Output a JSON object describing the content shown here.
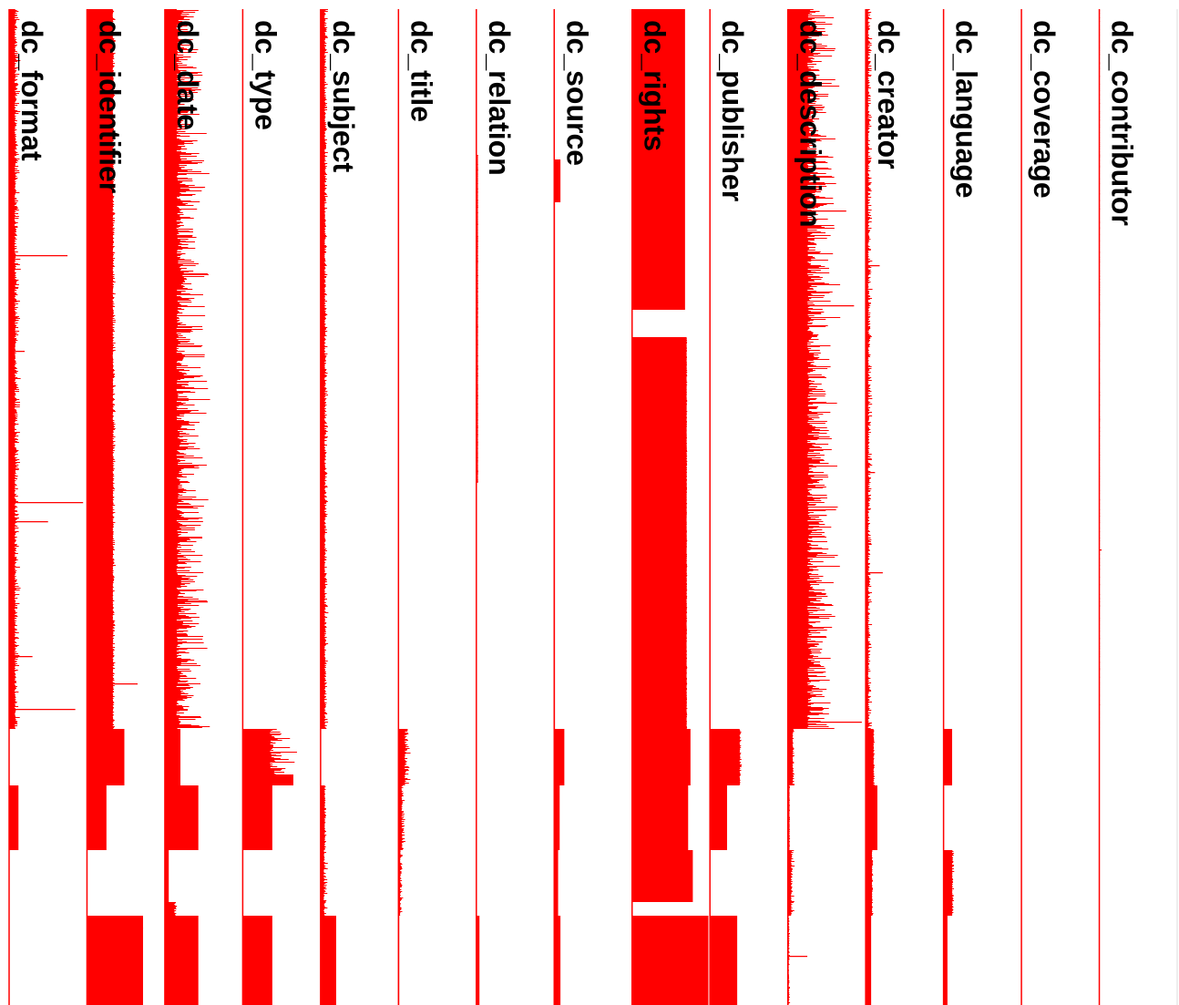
{
  "chart_data": {
    "type": "bar",
    "orientation": "horizontal-bars-in-vertical-lanes",
    "grid": false,
    "legend": "none",
    "color": "#ff0000",
    "background": "#ffffff",
    "x_range": [
      0,
      1
    ],
    "record_count": 1093,
    "fields": [
      {
        "name": "dc_contributor",
        "segments": [
          {
            "from": 0,
            "to": 790,
            "base": 0.005,
            "noise": 0.004,
            "spikes": [
              [
                593,
                0.03
              ]
            ]
          }
        ]
      },
      {
        "name": "dc_coverage",
        "segments": [
          {
            "from": 0,
            "to": 1093,
            "base": 0.0,
            "noise": 0.0,
            "spikes": []
          }
        ]
      },
      {
        "name": "dc_language",
        "segments": [
          {
            "from": 790,
            "to": 852,
            "base": 0.11,
            "noise": 0.0,
            "spikes": []
          },
          {
            "from": 923,
            "to": 995,
            "base": 0.11,
            "noise": 0.03,
            "spikes": []
          },
          {
            "from": 995,
            "to": 1093,
            "base": 0.05,
            "noise": 0.0,
            "spikes": []
          }
        ]
      },
      {
        "name": "dc_creator",
        "segments": [
          {
            "from": 0,
            "to": 790,
            "base": 0.03,
            "noise": 0.06,
            "spikes": [
              [
                281,
                0.18
              ],
              [
                618,
                0.22
              ],
              [
                508,
                0.12
              ]
            ]
          },
          {
            "from": 790,
            "to": 852,
            "base": 0.1,
            "noise": 0.02,
            "spikes": []
          },
          {
            "from": 852,
            "to": 923,
            "base": 0.15,
            "noise": 0.0,
            "spikes": []
          },
          {
            "from": 923,
            "to": 995,
            "base": 0.08,
            "noise": 0.02,
            "spikes": []
          },
          {
            "from": 995,
            "to": 1093,
            "base": 0.07,
            "noise": 0.0,
            "spikes": []
          }
        ]
      },
      {
        "name": "dc_description",
        "segments": [
          {
            "from": 0,
            "to": 790,
            "base": 0.25,
            "noise": 0.45,
            "spikes": [
              [
                221,
                0.75
              ],
              [
                325,
                0.85
              ],
              [
                782,
                0.95
              ],
              [
                555,
                0.5
              ]
            ]
          },
          {
            "from": 790,
            "to": 852,
            "base": 0.06,
            "noise": 0.03,
            "spikes": []
          },
          {
            "from": 852,
            "to": 923,
            "base": 0.02,
            "noise": 0.01,
            "spikes": []
          },
          {
            "from": 923,
            "to": 995,
            "base": 0.04,
            "noise": 0.06,
            "spikes": []
          },
          {
            "from": 995,
            "to": 1093,
            "base": 0.01,
            "noise": 0.02,
            "spikes": [
              [
                1039,
                0.25
              ]
            ]
          }
        ]
      },
      {
        "name": "dc_publisher",
        "segments": [
          {
            "from": 0,
            "to": 790,
            "base": 0.0,
            "noise": 0.0,
            "spikes": []
          },
          {
            "from": 790,
            "to": 852,
            "base": 0.38,
            "noise": 0.03,
            "spikes": []
          },
          {
            "from": 852,
            "to": 923,
            "base": 0.22,
            "noise": 0.0,
            "spikes": []
          },
          {
            "from": 995,
            "to": 1093,
            "base": 0.35,
            "noise": 0.0,
            "spikes": []
          }
        ]
      },
      {
        "name": "dc_rights",
        "segments": [
          {
            "from": 0,
            "to": 330,
            "base": 0.68,
            "noise": 0.0,
            "spikes": []
          },
          {
            "from": 360,
            "to": 790,
            "base": 0.7,
            "noise": 0.01,
            "spikes": []
          },
          {
            "from": 790,
            "to": 852,
            "base": 0.75,
            "noise": 0.0,
            "spikes": []
          },
          {
            "from": 852,
            "to": 923,
            "base": 0.72,
            "noise": 0.0,
            "spikes": []
          },
          {
            "from": 923,
            "to": 980,
            "base": 0.78,
            "noise": 0.0,
            "spikes": []
          },
          {
            "from": 995,
            "to": 1093,
            "base": 0.98,
            "noise": 0.0,
            "spikes": []
          }
        ]
      },
      {
        "name": "dc_source",
        "segments": [
          {
            "from": 165,
            "to": 212,
            "base": 0.08,
            "noise": 0.0,
            "spikes": []
          },
          {
            "from": 212,
            "to": 790,
            "base": 0.01,
            "noise": 0.0,
            "spikes": []
          },
          {
            "from": 790,
            "to": 852,
            "base": 0.13,
            "noise": 0.0,
            "spikes": []
          },
          {
            "from": 852,
            "to": 923,
            "base": 0.07,
            "noise": 0.0,
            "spikes": []
          },
          {
            "from": 923,
            "to": 995,
            "base": 0.05,
            "noise": 0.0,
            "spikes": []
          },
          {
            "from": 995,
            "to": 1093,
            "base": 0.08,
            "noise": 0.0,
            "spikes": []
          }
        ]
      },
      {
        "name": "dc_relation",
        "segments": [
          {
            "from": 160,
            "to": 520,
            "base": 0.02,
            "noise": 0.005,
            "spikes": []
          },
          {
            "from": 995,
            "to": 1093,
            "base": 0.04,
            "noise": 0.0,
            "spikes": []
          }
        ]
      },
      {
        "name": "dc_title",
        "segments": [
          {
            "from": 0,
            "to": 790,
            "base": 0.005,
            "noise": 0.003,
            "spikes": []
          },
          {
            "from": 790,
            "to": 852,
            "base": 0.08,
            "noise": 0.09,
            "spikes": []
          },
          {
            "from": 852,
            "to": 923,
            "base": 0.04,
            "noise": 0.06,
            "spikes": []
          },
          {
            "from": 923,
            "to": 995,
            "base": 0.02,
            "noise": 0.05,
            "spikes": []
          },
          {
            "from": 995,
            "to": 1093,
            "base": 0.01,
            "noise": 0.0,
            "spikes": []
          }
        ]
      },
      {
        "name": "dc_subject",
        "segments": [
          {
            "from": 0,
            "to": 790,
            "base": 0.05,
            "noise": 0.05,
            "spikes": []
          },
          {
            "from": 852,
            "to": 923,
            "base": 0.05,
            "noise": 0.03,
            "spikes": []
          },
          {
            "from": 923,
            "to": 995,
            "base": 0.04,
            "noise": 0.06,
            "spikes": []
          },
          {
            "from": 995,
            "to": 1093,
            "base": 0.2,
            "noise": 0.0,
            "spikes": []
          }
        ]
      },
      {
        "name": "dc_type",
        "segments": [
          {
            "from": 0,
            "to": 790,
            "base": 0.0,
            "noise": 0.0,
            "spikes": []
          },
          {
            "from": 790,
            "to": 840,
            "base": 0.35,
            "noise": 0.4,
            "spikes": []
          },
          {
            "from": 840,
            "to": 852,
            "base": 0.65,
            "noise": 0.0,
            "spikes": []
          },
          {
            "from": 852,
            "to": 923,
            "base": 0.38,
            "noise": 0.0,
            "spikes": []
          },
          {
            "from": 995,
            "to": 1093,
            "base": 0.38,
            "noise": 0.0,
            "spikes": []
          }
        ]
      },
      {
        "name": "dc_date",
        "segments": [
          {
            "from": 0,
            "to": 790,
            "base": 0.15,
            "noise": 0.45,
            "spikes": [
              [
                195,
                0.5
              ],
              [
                290,
                0.55
              ],
              [
                650,
                0.55
              ]
            ]
          },
          {
            "from": 790,
            "to": 852,
            "base": 0.2,
            "noise": 0.0,
            "spikes": []
          },
          {
            "from": 852,
            "to": 923,
            "base": 0.43,
            "noise": 0.0,
            "spikes": []
          },
          {
            "from": 923,
            "to": 980,
            "base": 0.05,
            "noise": 0.0,
            "spikes": []
          },
          {
            "from": 980,
            "to": 995,
            "base": 0.12,
            "noise": 0.06,
            "spikes": []
          },
          {
            "from": 995,
            "to": 1093,
            "base": 0.43,
            "noise": 0.0,
            "spikes": []
          }
        ]
      },
      {
        "name": "dc_identifier",
        "segments": [
          {
            "from": 0,
            "to": 790,
            "base": 0.33,
            "noise": 0.04,
            "spikes": [
              [
                740,
                0.65
              ]
            ]
          },
          {
            "from": 790,
            "to": 852,
            "base": 0.48,
            "noise": 0.0,
            "spikes": []
          },
          {
            "from": 852,
            "to": 923,
            "base": 0.25,
            "noise": 0.0,
            "spikes": []
          },
          {
            "from": 923,
            "to": 995,
            "base": 0.0,
            "noise": 0.0,
            "spikes": []
          },
          {
            "from": 995,
            "to": 1093,
            "base": 0.72,
            "noise": 0.0,
            "spikes": [
              [
                1008,
                0.72
              ]
            ]
          }
        ]
      },
      {
        "name": "dc_format",
        "segments": [
          {
            "from": 0,
            "to": 790,
            "base": 0.07,
            "noise": 0.08,
            "spikes": [
              [
                270,
                0.75
              ],
              [
                375,
                0.2
              ],
              [
                541,
                0.95
              ],
              [
                562,
                0.5
              ],
              [
                768,
                0.85
              ],
              [
                710,
                0.3
              ]
            ]
          },
          {
            "from": 790,
            "to": 852,
            "base": 0.0,
            "noise": 0.0,
            "spikes": []
          },
          {
            "from": 852,
            "to": 923,
            "base": 0.12,
            "noise": 0.0,
            "spikes": []
          }
        ]
      }
    ]
  }
}
